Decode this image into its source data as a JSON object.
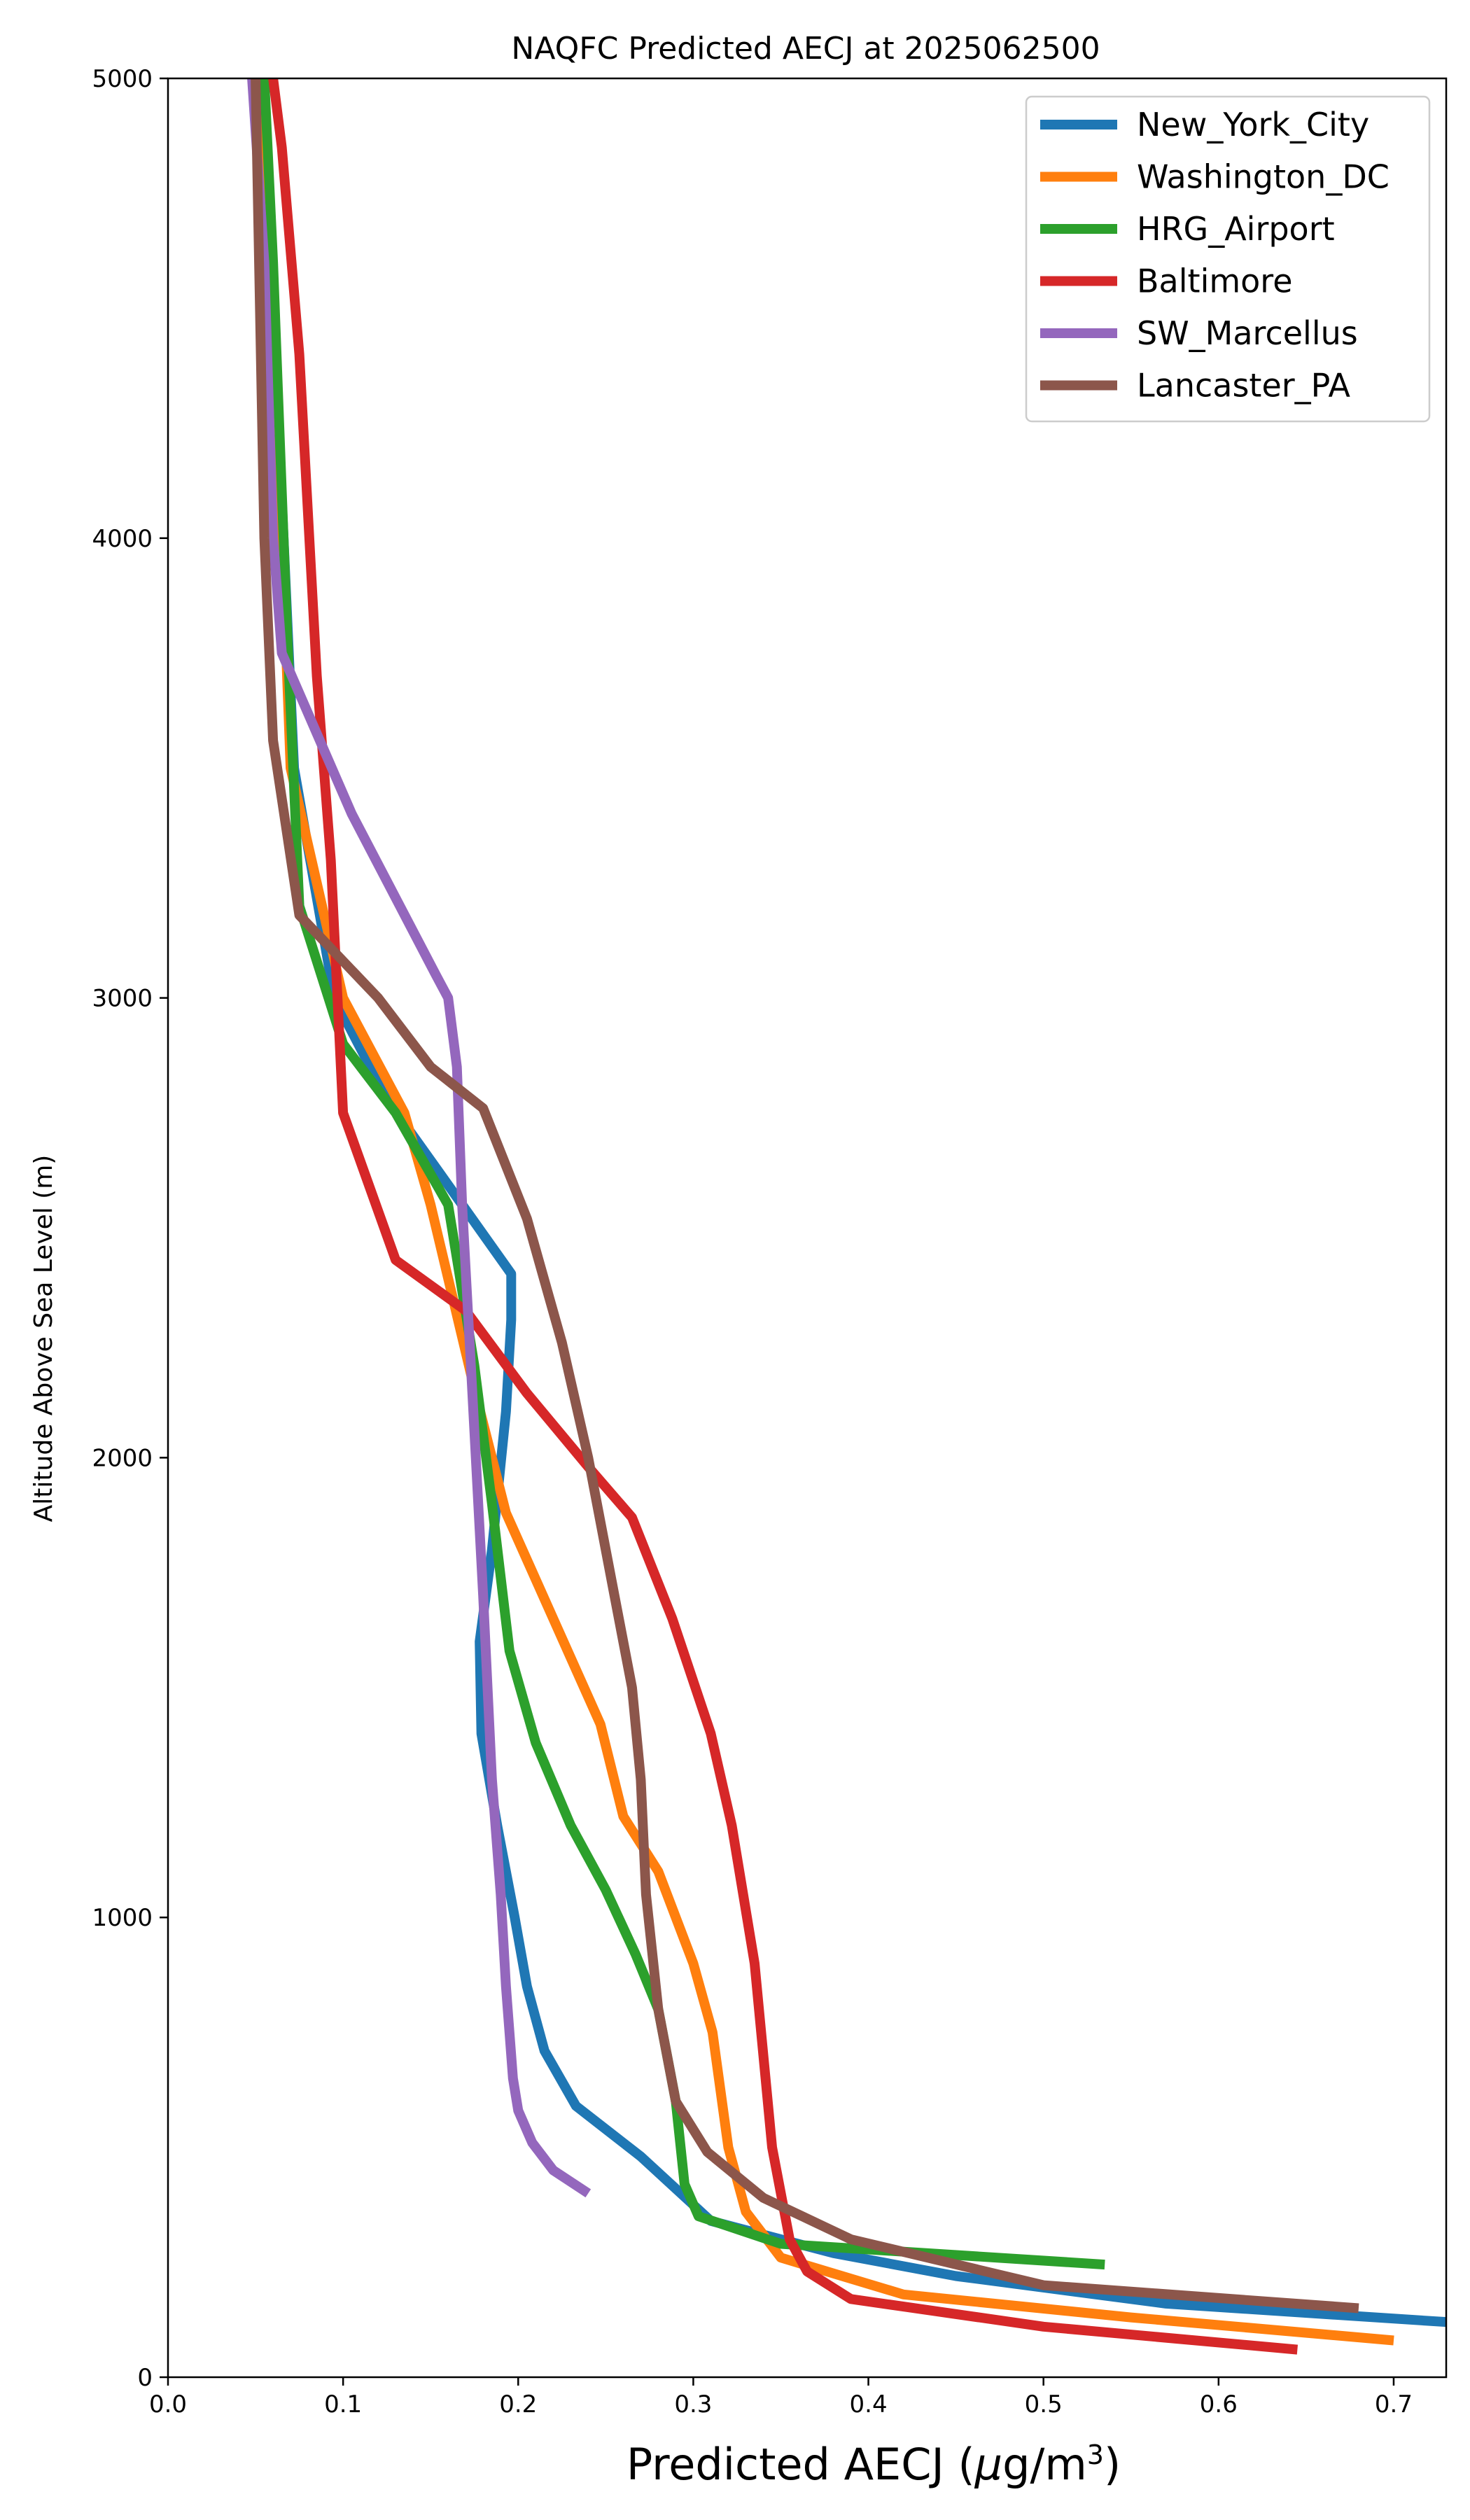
{
  "chart_data": {
    "type": "line",
    "title": "NAQFC Predicted AECJ at 2025062500",
    "xlabel_main": "Predicted AECJ (",
    "xlabel_mu": "μ",
    "xlabel_unit": "g/m",
    "xlabel_sup": "3",
    "xlabel_close": ")",
    "ylabel": "Altitude Above Sea Level (m)",
    "xlim": [
      0.0,
      0.73
    ],
    "ylim": [
      0,
      5000
    ],
    "xticks": [
      0.0,
      0.1,
      0.2,
      0.3,
      0.4,
      0.5,
      0.6,
      0.7
    ],
    "xtick_labels": [
      "0.0",
      "0.1",
      "0.2",
      "0.3",
      "0.4",
      "0.5",
      "0.6",
      "0.7"
    ],
    "yticks": [
      0,
      1000,
      2000,
      3000,
      4000,
      5000
    ],
    "ytick_labels": [
      "0",
      "1000",
      "2000",
      "3000",
      "4000",
      "5000"
    ],
    "legend_position": "top-right",
    "grid": false,
    "series": [
      {
        "name": "New_York_City",
        "color": "#1f77b4",
        "x": [
          0.73,
          0.57,
          0.45,
          0.38,
          0.31,
          0.27,
          0.233,
          0.215,
          0.205,
          0.198,
          0.188,
          0.179,
          0.178,
          0.185,
          0.193,
          0.196,
          0.196,
          0.155,
          0.125,
          0.095,
          0.072,
          0.06,
          0.055
        ],
        "y": [
          120,
          160,
          220,
          270,
          340,
          480,
          590,
          710,
          850,
          1000,
          1200,
          1400,
          1600,
          1800,
          2100,
          2300,
          2400,
          2620,
          2780,
          3000,
          3500,
          4500,
          5000
        ]
      },
      {
        "name": "Washington_DC",
        "color": "#ff7f0e",
        "x": [
          0.7,
          0.55,
          0.42,
          0.35,
          0.33,
          0.32,
          0.311,
          0.3,
          0.28,
          0.26,
          0.247,
          0.22,
          0.193,
          0.175,
          0.15,
          0.135,
          0.1,
          0.07,
          0.06,
          0.05
        ],
        "y": [
          80,
          130,
          180,
          260,
          360,
          500,
          750,
          900,
          1100,
          1220,
          1420,
          1650,
          1880,
          2150,
          2550,
          2750,
          3000,
          3500,
          4500,
          5000
        ]
      },
      {
        "name": "HRG_Airport",
        "color": "#2ca02c",
        "x": [
          0.535,
          0.35,
          0.303,
          0.295,
          0.29,
          0.28,
          0.267,
          0.25,
          0.23,
          0.21,
          0.195,
          0.185,
          0.175,
          0.16,
          0.13,
          0.1,
          0.075,
          0.068,
          0.06,
          0.055
        ],
        "y": [
          245,
          290,
          350,
          420,
          600,
          800,
          920,
          1060,
          1200,
          1380,
          1580,
          1900,
          2200,
          2550,
          2750,
          2900,
          3200,
          3800,
          4600,
          5000
        ]
      },
      {
        "name": "Baltimore",
        "color": "#d62728",
        "x": [
          0.645,
          0.5,
          0.39,
          0.365,
          0.355,
          0.35,
          0.345,
          0.335,
          0.322,
          0.31,
          0.288,
          0.265,
          0.24,
          0.205,
          0.17,
          0.13,
          0.1,
          0.093,
          0.085,
          0.075,
          0.065,
          0.06
        ],
        "y": [
          60,
          110,
          170,
          230,
          300,
          400,
          500,
          900,
          1200,
          1400,
          1650,
          1870,
          1980,
          2140,
          2320,
          2430,
          2750,
          3300,
          3700,
          4400,
          4850,
          5000
        ]
      },
      {
        "name": "SW_Marcellus",
        "color": "#9467bd",
        "x": [
          0.24,
          0.22,
          0.208,
          0.2,
          0.197,
          0.195,
          0.193,
          0.19,
          0.185,
          0.18,
          0.173,
          0.168,
          0.165,
          0.16,
          0.153,
          0.105,
          0.065,
          0.06,
          0.055,
          0.048
        ],
        "y": [
          400,
          450,
          510,
          580,
          650,
          750,
          850,
          1050,
          1300,
          1700,
          2200,
          2550,
          2850,
          3000,
          3050,
          3400,
          3750,
          4000,
          4600,
          5000
        ]
      },
      {
        "name": "Lancaster_PA",
        "color": "#8c564b",
        "x": [
          0.68,
          0.5,
          0.39,
          0.34,
          0.308,
          0.29,
          0.28,
          0.273,
          0.27,
          0.265,
          0.255,
          0.24,
          0.225,
          0.205,
          0.18,
          0.15,
          0.12,
          0.075,
          0.06,
          0.055,
          0.05
        ],
        "y": [
          150,
          200,
          300,
          390,
          490,
          600,
          800,
          1050,
          1300,
          1500,
          1700,
          2000,
          2250,
          2520,
          2760,
          2850,
          3000,
          3180,
          3560,
          4000,
          5000
        ]
      }
    ]
  }
}
